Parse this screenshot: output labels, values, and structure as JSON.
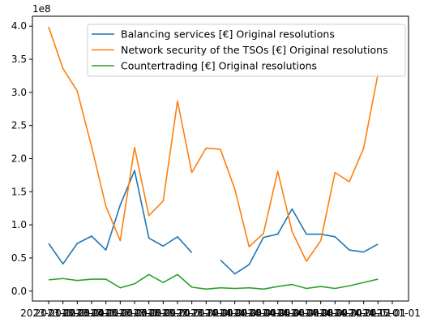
{
  "chart_data": {
    "type": "line",
    "offset_label": "1e8",
    "ylim": [
      -0.15,
      4.15
    ],
    "yticks": [
      0.0,
      0.5,
      1.0,
      1.5,
      2.0,
      2.5,
      3.0,
      3.5,
      4.0
    ],
    "ytick_labels": [
      "0.0",
      "0.5",
      "1.0",
      "1.5",
      "2.0",
      "2.5",
      "3.0",
      "3.5",
      "4.0"
    ],
    "xtick_labels": [
      "2023-01-01",
      "2023-02-01",
      "2023-03-01",
      "2023-04-01",
      "2023-05-01",
      "2023-06-01",
      "2023-07-01",
      "2023-08-01",
      "2023-09-01",
      "2023-10-01",
      "2023-11-01",
      "2023-12-01",
      "2024-01-01",
      "2024-02-01",
      "2024-03-01",
      "2024-04-01",
      "2024-05-01",
      "2024-06-01",
      "2024-07-01",
      "2024-08-01",
      "2024-09-01",
      "2024-10-01",
      "2024-11-01",
      "2024-12-01",
      "2025-01-01"
    ],
    "legend_position": "upper right",
    "grid": false,
    "series": [
      {
        "name": "Balancing services [€] Original resolutions",
        "color": "#1f77b4",
        "values": [
          0.72,
          0.41,
          0.72,
          0.83,
          0.62,
          1.3,
          1.82,
          0.8,
          0.68,
          0.82,
          0.58,
          null,
          0.47,
          0.26,
          0.4,
          0.81,
          0.86,
          1.24,
          0.86,
          0.86,
          0.82,
          0.62,
          0.59,
          0.71,
          null
        ]
      },
      {
        "name": "Network security of the TSOs [€] Original resolutions",
        "color": "#ff7f0e",
        "values": [
          3.99,
          3.36,
          3.02,
          2.18,
          1.28,
          0.76,
          2.17,
          1.14,
          1.36,
          2.87,
          1.79,
          2.16,
          2.14,
          1.54,
          0.67,
          0.87,
          1.81,
          0.9,
          0.45,
          0.76,
          1.79,
          1.65,
          2.16,
          3.28,
          null
        ]
      },
      {
        "name": "Countertrading [€] Original resolutions",
        "color": "#2ca02c",
        "values": [
          0.17,
          0.19,
          0.16,
          0.18,
          0.18,
          0.05,
          0.11,
          0.25,
          0.13,
          0.25,
          0.06,
          0.03,
          0.05,
          0.04,
          0.05,
          0.03,
          0.07,
          0.1,
          0.04,
          0.07,
          0.04,
          0.08,
          0.13,
          0.18,
          null
        ]
      }
    ]
  }
}
